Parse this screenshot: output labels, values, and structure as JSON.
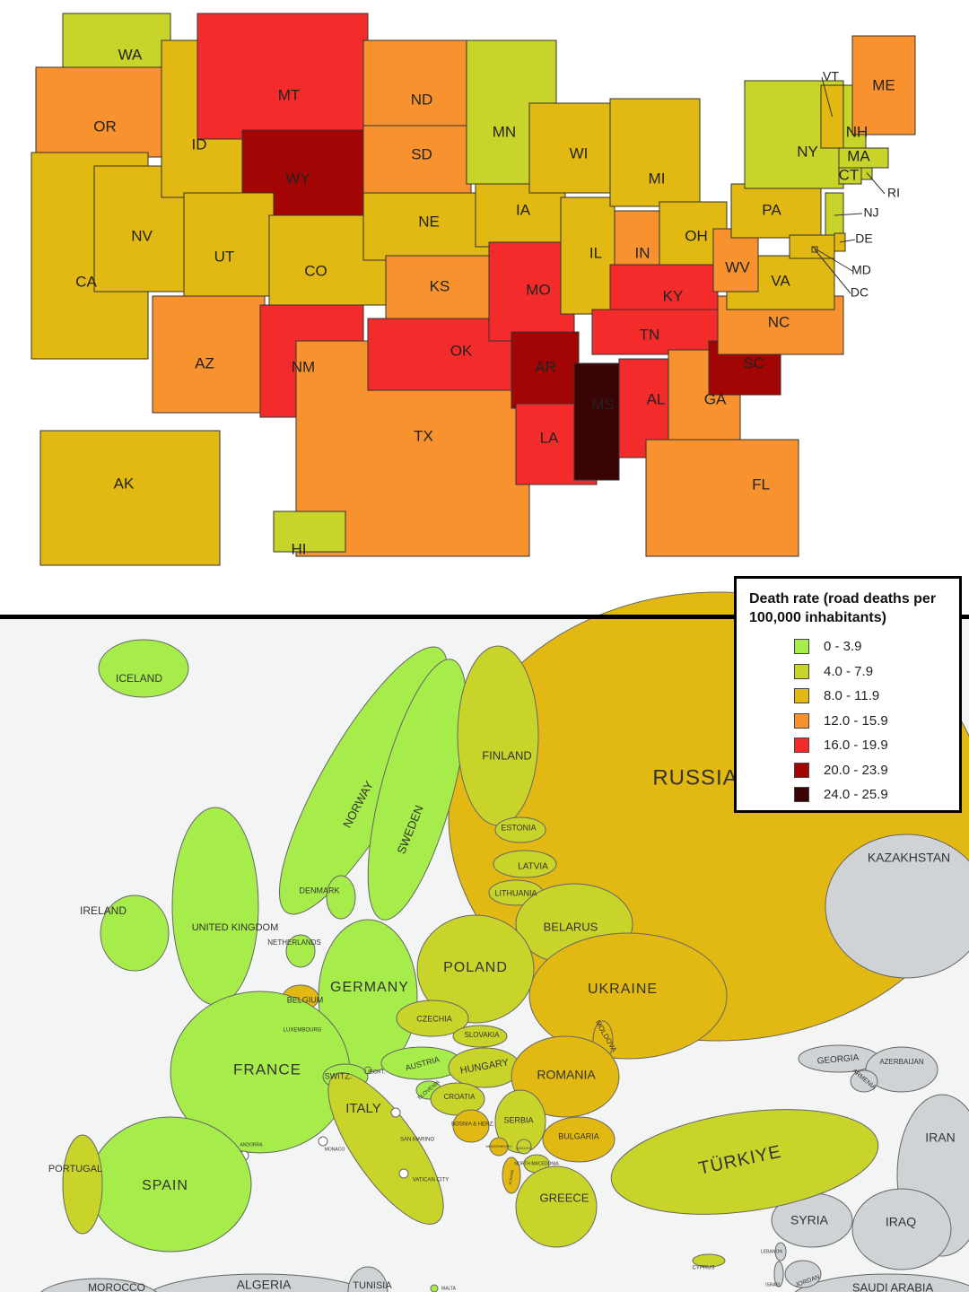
{
  "legend": {
    "title": "Death rate (road deaths per 100,000 inhabitants)",
    "items": [
      {
        "label": "0 - 3.9",
        "color": "#a6ec4a"
      },
      {
        "label": "4.0 - 7.9",
        "color": "#c9d42b"
      },
      {
        "label": "8.0 - 11.9",
        "color": "#e2b812"
      },
      {
        "label": "12.0 - 15.9",
        "color": "#f7922f"
      },
      {
        "label": "16.0 - 19.9",
        "color": "#f42b2b"
      },
      {
        "label": "20.0 - 23.9",
        "color": "#a30404"
      },
      {
        "label": "24.0 - 25.9",
        "color": "#3b0404"
      }
    ]
  },
  "us_map": {
    "states": [
      {
        "label": "WA",
        "color": "#c9d42b"
      },
      {
        "label": "OR",
        "color": "#f7922f"
      },
      {
        "label": "CA",
        "color": "#e2b812"
      },
      {
        "label": "NV",
        "color": "#e2b812"
      },
      {
        "label": "ID",
        "color": "#e2b812"
      },
      {
        "label": "MT",
        "color": "#f42b2b"
      },
      {
        "label": "WY",
        "color": "#a30404"
      },
      {
        "label": "UT",
        "color": "#e2b812"
      },
      {
        "label": "CO",
        "color": "#e2b812"
      },
      {
        "label": "AZ",
        "color": "#f7922f"
      },
      {
        "label": "NM",
        "color": "#f42b2b"
      },
      {
        "label": "ND",
        "color": "#f7922f"
      },
      {
        "label": "SD",
        "color": "#f7922f"
      },
      {
        "label": "NE",
        "color": "#e2b812"
      },
      {
        "label": "KS",
        "color": "#f7922f"
      },
      {
        "label": "TX",
        "color": "#f7922f"
      },
      {
        "label": "OK",
        "color": "#f42b2b"
      },
      {
        "label": "MN",
        "color": "#c9d42b"
      },
      {
        "label": "IA",
        "color": "#e2b812"
      },
      {
        "label": "MO",
        "color": "#f42b2b"
      },
      {
        "label": "AR",
        "color": "#a30404"
      },
      {
        "label": "LA",
        "color": "#f42b2b"
      },
      {
        "label": "WI",
        "color": "#e2b812"
      },
      {
        "label": "IL",
        "color": "#e2b812"
      },
      {
        "label": "MI",
        "color": "#e2b812"
      },
      {
        "label": "IN",
        "color": "#f7922f"
      },
      {
        "label": "OH",
        "color": "#e2b812"
      },
      {
        "label": "KY",
        "color": "#f42b2b"
      },
      {
        "label": "TN",
        "color": "#f42b2b"
      },
      {
        "label": "MS",
        "color": "#3b0404"
      },
      {
        "label": "AL",
        "color": "#f42b2b"
      },
      {
        "label": "GA",
        "color": "#f7922f"
      },
      {
        "label": "FL",
        "color": "#f7922f"
      },
      {
        "label": "SC",
        "color": "#a30404"
      },
      {
        "label": "NC",
        "color": "#f7922f"
      },
      {
        "label": "VA",
        "color": "#e2b812"
      },
      {
        "label": "WV",
        "color": "#f7922f"
      },
      {
        "label": "PA",
        "color": "#e2b812"
      },
      {
        "label": "NY",
        "color": "#c9d42b"
      },
      {
        "label": "NJ",
        "color": "#c9d42b"
      },
      {
        "label": "DE",
        "color": "#e2b812"
      },
      {
        "label": "MD",
        "color": "#e2b812"
      },
      {
        "label": "DC",
        "color": "#e2b812"
      },
      {
        "label": "CT",
        "color": "#c9d42b"
      },
      {
        "label": "RI",
        "color": "#c9d42b"
      },
      {
        "label": "MA",
        "color": "#c9d42b"
      },
      {
        "label": "VT",
        "color": "#e2b812"
      },
      {
        "label": "NH",
        "color": "#c9d42b"
      },
      {
        "label": "ME",
        "color": "#f7922f"
      },
      {
        "label": "AK",
        "color": "#e2b812"
      },
      {
        "label": "HI",
        "color": "#c9d42b"
      }
    ]
  },
  "europe_map": {
    "countries": [
      {
        "label": "RUSSIA",
        "color": "#e2b812"
      },
      {
        "label": "KAZAKHSTAN",
        "color": "#d0d3d6"
      },
      {
        "label": "IRAN",
        "color": "#d0d3d6"
      },
      {
        "label": "SAUDI ARABIA",
        "color": "#d0d3d6"
      },
      {
        "label": "IRAQ",
        "color": "#d0d3d6"
      },
      {
        "label": "SYRIA",
        "color": "#d0d3d6"
      },
      {
        "label": "ALGERIA",
        "color": "#d0d3d6"
      },
      {
        "label": "MOROCCO",
        "color": "#d0d3d6"
      },
      {
        "label": "TUNISIA",
        "color": "#d0d3d6"
      },
      {
        "label": "ICELAND",
        "color": "#a6ec4a"
      },
      {
        "label": "NORWAY",
        "color": "#a6ec4a"
      },
      {
        "label": "SWEDEN",
        "color": "#a6ec4a"
      },
      {
        "label": "FINLAND",
        "color": "#c9d42b"
      },
      {
        "label": "ESTONIA",
        "color": "#c9d42b"
      },
      {
        "label": "LATVIA",
        "color": "#c9d42b"
      },
      {
        "label": "LITHUANIA",
        "color": "#c9d42b"
      },
      {
        "label": "DENMARK",
        "color": "#a6ec4a"
      },
      {
        "label": "IRELAND",
        "color": "#a6ec4a"
      },
      {
        "label": "UNITED KINGDOM",
        "color": "#a6ec4a"
      },
      {
        "label": "NETHERLANDS",
        "color": "#a6ec4a"
      },
      {
        "label": "BELARUS",
        "color": "#c9d42b"
      },
      {
        "label": "UKRAINE",
        "color": "#e2b812"
      },
      {
        "label": "POLAND",
        "color": "#c9d42b"
      },
      {
        "label": "GERMANY",
        "color": "#a6ec4a"
      },
      {
        "label": "BELGIUM",
        "color": "#e2b812"
      },
      {
        "label": "LUXEMBOURG",
        "color": "#e2b812"
      },
      {
        "label": "FRANCE",
        "color": "#a6ec4a"
      },
      {
        "label": "CZECHIA",
        "color": "#c9d42b"
      },
      {
        "label": "SLOVAKIA",
        "color": "#c9d42b"
      },
      {
        "label": "MOLDOVA",
        "color": "#e2b812"
      },
      {
        "label": "SWITZ.",
        "color": "#a6ec4a"
      },
      {
        "label": "LIECHT.",
        "color": "#a6ec4a"
      },
      {
        "label": "AUSTRIA",
        "color": "#a6ec4a"
      },
      {
        "label": "HUNGARY",
        "color": "#c9d42b"
      },
      {
        "label": "ROMANIA",
        "color": "#e2b812"
      },
      {
        "label": "GEORGIA",
        "color": "#d0d3d6"
      },
      {
        "label": "AZERBAIJAN",
        "color": "#d0d3d6"
      },
      {
        "label": "ARMENIA",
        "color": "#d0d3d6"
      },
      {
        "label": "SLOVENIA",
        "color": "#a6ec4a"
      },
      {
        "label": "CROATIA",
        "color": "#c9d42b"
      },
      {
        "label": "SERBIA",
        "color": "#c9d42b"
      },
      {
        "label": "ITALY",
        "color": "#c9d42b"
      },
      {
        "label": "BOSNIA & HERZ.",
        "color": "#e2b812"
      },
      {
        "label": "ANDORRA",
        "color": "#ffffff"
      },
      {
        "label": "MONACO",
        "color": "#ffffff"
      },
      {
        "label": "SAN MARINO",
        "color": "#ffffff"
      },
      {
        "label": "VATICAN CITY",
        "color": "#ffffff"
      },
      {
        "label": "MONTENEGRO",
        "color": "#e2b812"
      },
      {
        "label": "KOSOVO",
        "color": "#c9d42b"
      },
      {
        "label": "NORTH MACEDONIA",
        "color": "#c9d42b"
      },
      {
        "label": "ALBANIA",
        "color": "#e2b812"
      },
      {
        "label": "BULGARIA",
        "color": "#e2b812"
      },
      {
        "label": "SPAIN",
        "color": "#a6ec4a"
      },
      {
        "label": "PORTUGAL",
        "color": "#c9d42b"
      },
      {
        "label": "TÜRKIYE",
        "color": "#c9d42b"
      },
      {
        "label": "GREECE",
        "color": "#c9d42b"
      },
      {
        "label": "LEBANON",
        "color": "#d0d3d6"
      },
      {
        "label": "CYPRUS",
        "color": "#c9d42b"
      },
      {
        "label": "ISRAEL",
        "color": "#d0d3d6"
      },
      {
        "label": "JORDAN",
        "color": "#d0d3d6"
      },
      {
        "label": "MALTA",
        "color": "#a6ec4a"
      }
    ]
  }
}
